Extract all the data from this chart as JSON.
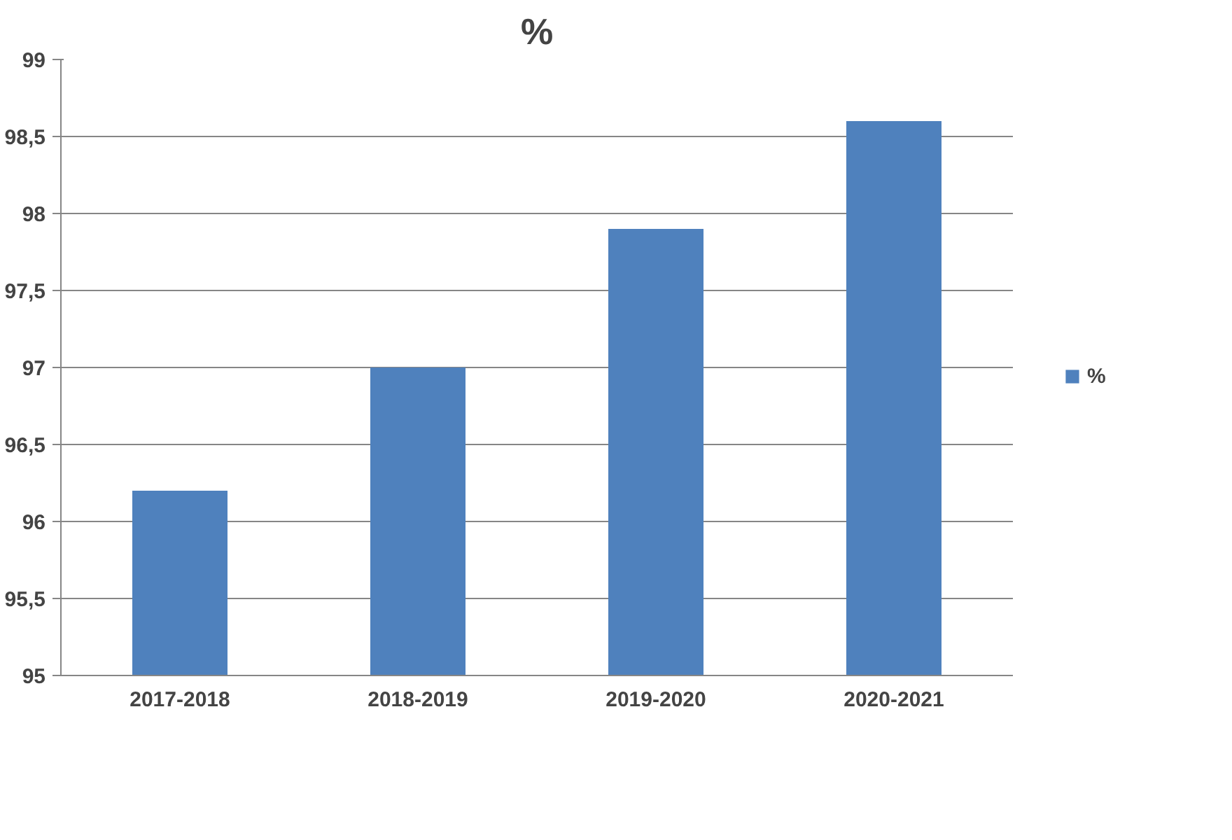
{
  "chart_data": {
    "type": "bar",
    "title": "%",
    "categories": [
      "2017-2018",
      "2018-2019",
      "2019-2020",
      "2020-2021"
    ],
    "series": [
      {
        "name": "%",
        "color": "#4f81bd",
        "values": [
          96.2,
          97.0,
          97.9,
          98.6
        ]
      }
    ],
    "ylim": [
      95,
      99
    ],
    "yticks": [
      95,
      {
        "value": 95.5,
        "label": "95,5"
      },
      96,
      {
        "value": 96.5,
        "label": "96,5"
      },
      97,
      {
        "value": 97.5,
        "label": "97,5"
      },
      98,
      {
        "value": 98.5,
        "label": "98,5"
      },
      99
    ],
    "grid": "y",
    "legend": "right"
  }
}
